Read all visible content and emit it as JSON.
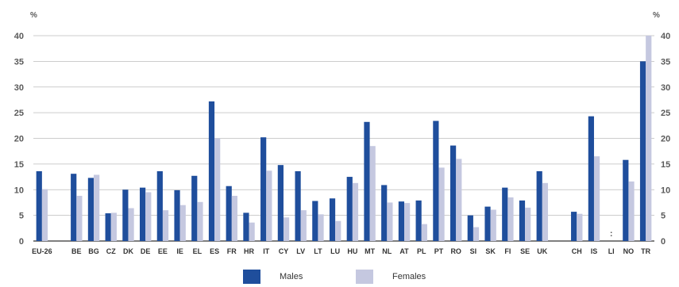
{
  "chart_data": {
    "type": "bar",
    "unit_left": "%",
    "unit_right": "%",
    "ylim": [
      0,
      40
    ],
    "yticks": [
      0,
      5,
      10,
      15,
      20,
      25,
      30,
      35,
      40
    ],
    "grid": true,
    "categories": [
      "EU-26",
      "",
      "BE",
      "BG",
      "CZ",
      "DK",
      "DE",
      "EE",
      "IE",
      "EL",
      "ES",
      "FR",
      "HR",
      "IT",
      "CY",
      "LV",
      "LT",
      "LU",
      "HU",
      "MT",
      "NL",
      "AT",
      "PL",
      "PT",
      "RO",
      "SI",
      "SK",
      "FI",
      "SE",
      "UK",
      "",
      "CH",
      "IS",
      "LI",
      "NO",
      "TR"
    ],
    "series": [
      {
        "name": "Males",
        "color": "#1f4e9c",
        "values": [
          13.6,
          null,
          13.1,
          12.3,
          5.4,
          10.0,
          10.4,
          13.6,
          9.9,
          12.7,
          27.2,
          10.7,
          5.5,
          20.2,
          14.8,
          13.6,
          7.8,
          8.3,
          12.5,
          23.2,
          10.9,
          7.7,
          7.9,
          23.4,
          18.6,
          5.0,
          6.7,
          10.4,
          7.9,
          13.6,
          null,
          5.7,
          24.3,
          null,
          15.8,
          35.0
        ]
      },
      {
        "name": "Females",
        "color": "#c5c8e0",
        "values": [
          10.1,
          null,
          8.8,
          12.9,
          5.5,
          6.4,
          9.5,
          6.0,
          7.0,
          7.6,
          20.0,
          8.8,
          3.6,
          13.7,
          4.6,
          6.0,
          5.2,
          3.9,
          11.3,
          18.5,
          7.5,
          7.4,
          3.3,
          14.3,
          16.0,
          2.7,
          6.1,
          8.5,
          6.5,
          11.3,
          null,
          5.3,
          16.5,
          null,
          11.6,
          40.0
        ]
      }
    ],
    "annotations": [
      {
        "category": "LI",
        "text": ":"
      }
    ]
  },
  "colors": {
    "gridline": "#bcbcbc",
    "axis": "#333333",
    "background": "#ffffff"
  },
  "legend": {
    "placement": "bottom-center",
    "items": [
      {
        "label": "Males",
        "color": "#1f4e9c"
      },
      {
        "label": "Females",
        "color": "#c5c8e0"
      }
    ]
  }
}
